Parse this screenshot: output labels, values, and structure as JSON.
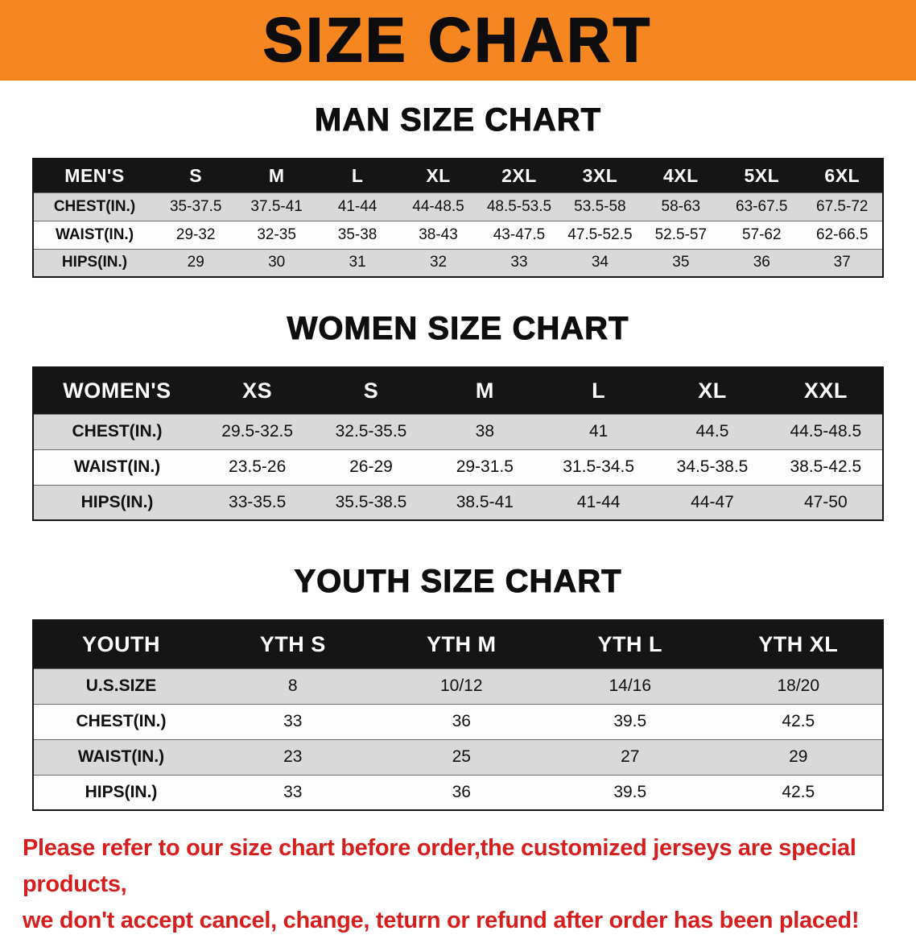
{
  "banner": {
    "title": "SIZE CHART",
    "bg_color": "#F6861F"
  },
  "sections": [
    {
      "heading": "MAN SIZE CHART",
      "table": {
        "header": [
          "MEN'S",
          "S",
          "M",
          "L",
          "XL",
          "2XL",
          "3XL",
          "4XL",
          "5XL",
          "6XL"
        ],
        "rows": [
          [
            "CHEST(IN.)",
            "35-37.5",
            "37.5-41",
            "41-44",
            "44-48.5",
            "48.5-53.5",
            "53.5-58",
            "58-63",
            "63-67.5",
            "67.5-72"
          ],
          [
            "WAIST(IN.)",
            "29-32",
            "32-35",
            "35-38",
            "38-43",
            "43-47.5",
            "47.5-52.5",
            "52.5-57",
            "57-62",
            "62-66.5"
          ],
          [
            "HIPS(IN.)",
            "29",
            "30",
            "31",
            "32",
            "33",
            "34",
            "35",
            "36",
            "37"
          ]
        ]
      }
    },
    {
      "heading": "WOMEN SIZE CHART",
      "table": {
        "header": [
          "WOMEN'S",
          "XS",
          "S",
          "M",
          "L",
          "XL",
          "XXL"
        ],
        "rows": [
          [
            "CHEST(IN.)",
            "29.5-32.5",
            "32.5-35.5",
            "38",
            "41",
            "44.5",
            "44.5-48.5"
          ],
          [
            "WAIST(IN.)",
            "23.5-26",
            "26-29",
            "29-31.5",
            "31.5-34.5",
            "34.5-38.5",
            "38.5-42.5"
          ],
          [
            "HIPS(IN.)",
            "33-35.5",
            "35.5-38.5",
            "38.5-41",
            "41-44",
            "44-47",
            "47-50"
          ]
        ]
      }
    },
    {
      "heading": "YOUTH SIZE CHART",
      "table": {
        "header": [
          "YOUTH",
          "YTH S",
          "YTH M",
          "YTH L",
          "YTH XL"
        ],
        "rows": [
          [
            "U.S.SIZE",
            "8",
            "10/12",
            "14/16",
            "18/20"
          ],
          [
            "CHEST(IN.)",
            "33",
            "36",
            "39.5",
            "42.5"
          ],
          [
            "WAIST(IN.)",
            "23",
            "25",
            "27",
            "29"
          ],
          [
            "HIPS(IN.)",
            "33",
            "36",
            "39.5",
            "42.5"
          ]
        ]
      }
    }
  ],
  "footer": {
    "line1": "Please refer to our size chart before order,the customized jerseys are special products,",
    "line2": "we don't accept cancel, change, teturn or refund after order has been placed!",
    "text_color": "#D61E1E"
  }
}
